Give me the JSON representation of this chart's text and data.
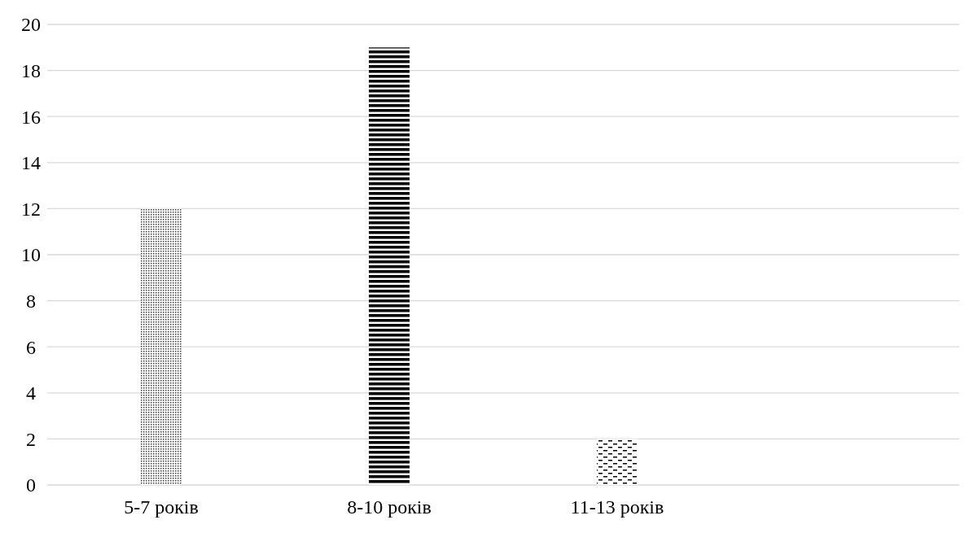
{
  "chart_data": {
    "type": "bar",
    "categories": [
      "5-7 років",
      "8-10 років",
      "11-13 років",
      null
    ],
    "values": [
      12,
      19,
      2,
      null
    ],
    "colors": [
      "#404040",
      "#000000",
      "#000000",
      "#000000"
    ],
    "ylim": [
      0,
      20
    ],
    "yticks": [
      0,
      2,
      4,
      6,
      8,
      10,
      12,
      14,
      16,
      18,
      20
    ],
    "grid": "y"
  }
}
